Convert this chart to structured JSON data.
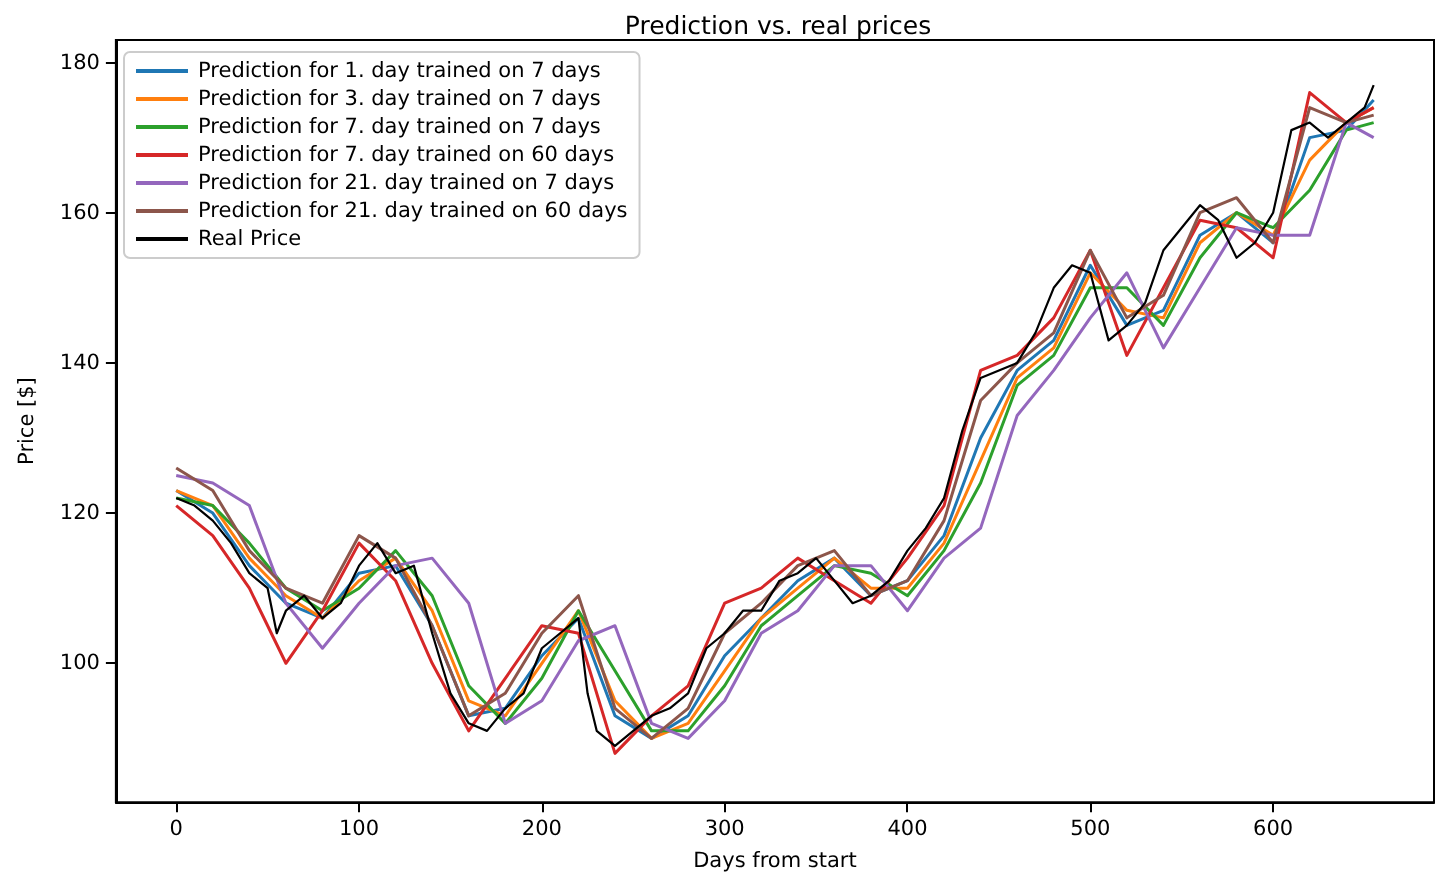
{
  "chart_data": {
    "type": "line",
    "title": "Prediction vs. real prices",
    "xlabel": "Days from start",
    "ylabel": "Price [$]",
    "x": [
      0,
      20,
      40,
      60,
      80,
      100,
      120,
      140,
      160,
      180,
      200,
      220,
      240,
      260,
      280,
      300,
      320,
      340,
      360,
      380,
      400,
      420,
      440,
      460,
      480,
      500,
      520,
      540,
      560,
      580,
      600,
      620,
      640,
      655
    ],
    "xlim": [
      -33,
      688
    ],
    "xticks": [
      0,
      100,
      200,
      300,
      400,
      500,
      600
    ],
    "ylim": [
      81.5,
      183
    ],
    "yticks": [
      100,
      120,
      140,
      160,
      180
    ],
    "grid": false,
    "legend": "top left",
    "marker": "none",
    "line_style": "solid",
    "series": [
      {
        "name": "Prediction for 1. day trained on 7 days",
        "color": "#1f77b4",
        "values": [
          123,
          120,
          113,
          108,
          106,
          112,
          113,
          105,
          93,
          94,
          101,
          106,
          93,
          90,
          93,
          101,
          106,
          111,
          114,
          109,
          111,
          117,
          130,
          139,
          143,
          153,
          145,
          147,
          157,
          160,
          156,
          170,
          171,
          175
        ]
      },
      {
        "name": "Prediction for 3. day trained on 7 days",
        "color": "#ff7f0e",
        "values": [
          123,
          121,
          114,
          109,
          106,
          111,
          114,
          107,
          95,
          93,
          100,
          107,
          95,
          90,
          92,
          99,
          106,
          110,
          114,
          110,
          110,
          116,
          127,
          138,
          142,
          152,
          147,
          146,
          156,
          160,
          157,
          167,
          172,
          174
        ]
      },
      {
        "name": "Prediction for 7. day trained on 7 days",
        "color": "#2ca02c",
        "values": [
          122,
          121,
          116,
          110,
          107,
          110,
          115,
          109,
          97,
          92,
          98,
          107,
          99,
          91,
          91,
          97,
          105,
          109,
          113,
          112,
          109,
          115,
          124,
          137,
          141,
          150,
          150,
          145,
          154,
          160,
          158,
          163,
          171,
          172
        ]
      },
      {
        "name": "Prediction for 7. day trained on 60 days",
        "color": "#d62728",
        "values": [
          121,
          117,
          110,
          100,
          107,
          116,
          111,
          100,
          91,
          98,
          105,
          104,
          88,
          93,
          97,
          108,
          110,
          114,
          111,
          108,
          114,
          121,
          139,
          141,
          146,
          155,
          141,
          150,
          159,
          158,
          154,
          176,
          172,
          174
        ]
      },
      {
        "name": "Prediction for 21. day trained on 7 days",
        "color": "#9467bd",
        "values": [
          125,
          124,
          121,
          108,
          102,
          108,
          113,
          114,
          108,
          92,
          95,
          103,
          105,
          92,
          90,
          95,
          104,
          107,
          113,
          113,
          107,
          114,
          118,
          133,
          139,
          146,
          152,
          142,
          150,
          158,
          157,
          157,
          172,
          170
        ]
      },
      {
        "name": "Prediction for 21. day trained on 60 days",
        "color": "#8c564b",
        "values": [
          126,
          123,
          115,
          110,
          108,
          117,
          114,
          105,
          93,
          96,
          104,
          109,
          94,
          90,
          94,
          104,
          108,
          113,
          115,
          109,
          111,
          119,
          135,
          140,
          144,
          155,
          146,
          149,
          160,
          162,
          156,
          174,
          172,
          173
        ]
      },
      {
        "name": "Real Price",
        "color": "#000000",
        "x": [
          0,
          10,
          20,
          30,
          40,
          50,
          55,
          60,
          70,
          80,
          90,
          100,
          110,
          120,
          130,
          140,
          150,
          160,
          170,
          180,
          190,
          200,
          210,
          220,
          225,
          230,
          240,
          250,
          260,
          270,
          280,
          290,
          300,
          310,
          320,
          330,
          340,
          350,
          360,
          370,
          380,
          390,
          400,
          410,
          420,
          430,
          440,
          450,
          460,
          470,
          480,
          490,
          500,
          510,
          520,
          530,
          540,
          550,
          560,
          570,
          580,
          590,
          600,
          610,
          620,
          630,
          640,
          650,
          655
        ],
        "values": [
          122,
          121,
          119,
          116,
          112,
          110,
          104,
          107,
          109,
          106,
          108,
          113,
          116,
          112,
          113,
          104,
          96,
          92,
          91,
          94,
          96,
          102,
          104,
          106,
          96,
          91,
          89,
          91,
          93,
          94,
          96,
          102,
          104,
          107,
          107,
          111,
          112,
          114,
          111,
          108,
          109,
          111,
          115,
          118,
          122,
          131,
          138,
          139,
          140,
          144,
          150,
          153,
          152,
          143,
          145,
          148,
          155,
          158,
          161,
          159,
          154,
          156,
          160,
          171,
          172,
          170,
          172,
          174,
          177
        ]
      }
    ]
  }
}
